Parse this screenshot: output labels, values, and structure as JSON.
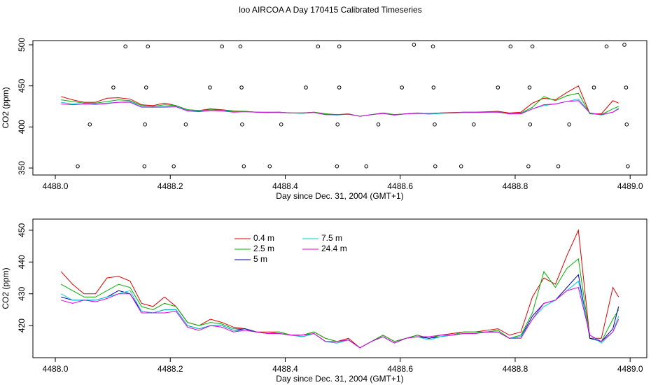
{
  "chart_data": [
    {
      "type": "line",
      "title": "loo AIRCOA A  Day 170415  Calibrated Timeseries",
      "x_label": "Day since Dec. 31, 2004 (GMT+1)",
      "y_label": "CO2 (ppm)",
      "xlim": [
        4487.961,
        4489.029
      ],
      "ylim": [
        341.5,
        505.1
      ],
      "xticks": [
        {
          "value": 4488,
          "label": "4488.0"
        },
        4488.2,
        4488.4,
        4488.6,
        4488.8,
        {
          "value": 4489,
          "label": "4489.0"
        }
      ],
      "yticks": [
        350,
        400,
        450,
        500
      ],
      "x": [
        4488.01,
        4488.03,
        4488.05,
        4488.07,
        4488.09,
        4488.11,
        4488.13,
        4488.15,
        4488.17,
        4488.19,
        4488.21,
        4488.23,
        4488.25,
        4488.27,
        4488.29,
        4488.31,
        4488.33,
        4488.35,
        4488.37,
        4488.39,
        4488.41,
        4488.43,
        4488.45,
        4488.47,
        4488.49,
        4488.51,
        4488.53,
        4488.55,
        4488.57,
        4488.59,
        4488.61,
        4488.63,
        4488.65,
        4488.67,
        4488.69,
        4488.71,
        4488.73,
        4488.75,
        4488.77,
        4488.79,
        4488.81,
        4488.83,
        4488.85,
        4488.87,
        4488.89,
        4488.91,
        4488.93,
        4488.95,
        4488.97,
        4488.98
      ],
      "series": [
        {
          "color": "#d80000",
          "values": [
            437,
            433,
            430,
            430,
            435,
            435.5,
            434,
            427,
            426,
            429,
            426,
            421,
            420,
            422,
            421,
            419.5,
            419,
            418,
            418,
            418,
            417,
            417,
            418,
            416,
            415,
            416,
            413,
            415,
            417,
            415,
            416,
            417,
            416,
            417,
            417.5,
            418,
            418,
            418.5,
            419,
            417,
            418,
            429,
            435,
            433,
            442,
            450,
            416,
            416,
            432,
            429
          ]
        },
        {
          "color": "#00b000",
          "values": [
            433,
            431,
            429,
            429,
            431,
            433,
            432,
            426,
            425,
            427,
            426,
            421,
            420,
            421,
            420.5,
            419,
            419,
            418,
            417.5,
            418,
            417,
            417,
            418,
            416,
            415,
            415.5,
            413,
            415,
            417,
            415,
            416,
            417,
            416,
            417,
            417,
            418,
            418,
            418,
            418.5,
            416,
            417,
            424,
            437,
            432,
            438,
            441,
            416,
            415,
            422,
            425
          ]
        },
        {
          "color": "#00000a0",
          "values": [
            429,
            428,
            428,
            428,
            429,
            431,
            430,
            424.5,
            424,
            425,
            425,
            420,
            419,
            420,
            420,
            418.5,
            419,
            418,
            417.5,
            417.5,
            417,
            416.5,
            417.5,
            415,
            414.5,
            415.5,
            413,
            415,
            416.5,
            414.5,
            416,
            416.5,
            416,
            416.5,
            417,
            417.5,
            417.5,
            418,
            418,
            416,
            416.5,
            423,
            427,
            428,
            432,
            436,
            416,
            415,
            419,
            426
          ]
        },
        {
          "color": "#00d0d0",
          "values": [
            430,
            428,
            428,
            428,
            429,
            430,
            431,
            424.5,
            424,
            425,
            425,
            420,
            419,
            420,
            420,
            418.5,
            418.5,
            418,
            417.5,
            417.5,
            417,
            416.5,
            417.5,
            415,
            414.5,
            415.5,
            413,
            415,
            416.5,
            414.5,
            416,
            416.5,
            415.5,
            416.5,
            417,
            417.5,
            417.5,
            418,
            418,
            416,
            416.5,
            422,
            426,
            428,
            431,
            434,
            417,
            414.5,
            418,
            423
          ]
        },
        {
          "color": "#e000e0",
          "values": [
            428,
            427,
            428,
            427.5,
            428.5,
            430,
            430,
            424,
            424,
            424,
            424.5,
            419.5,
            418.5,
            420,
            419.5,
            418,
            418.5,
            418,
            417.5,
            417.5,
            417,
            417,
            417.5,
            415,
            415,
            415.5,
            413,
            415,
            416.5,
            414.5,
            416,
            416.5,
            416.5,
            417,
            417,
            417.5,
            417.5,
            418,
            418,
            416,
            416,
            422,
            427,
            428,
            431,
            432,
            417,
            415,
            418,
            422
          ]
        }
      ],
      "points": {
        "color": "#000000",
        "x": [
          4488.122,
          4488.161,
          4488.29,
          4488.322,
          4488.457,
          4488.494,
          4488.624,
          4488.657,
          4488.792,
          4488.83,
          4488.959,
          4488.99,
          4488.101,
          4488.158,
          4488.269,
          4488.324,
          4488.436,
          4488.494,
          4488.603,
          4488.658,
          4488.77,
          4488.825,
          4488.937,
          4488.993,
          4488.06,
          4488.156,
          4488.227,
          4488.325,
          4488.393,
          4488.491,
          4488.562,
          4488.66,
          4488.728,
          4488.826,
          4488.894,
          4488.994,
          4488.039,
          4488.155,
          4488.206,
          4488.328,
          4488.373,
          4488.49,
          4488.541,
          4488.661,
          4488.706,
          4488.823,
          4488.875,
          4488.996
        ],
        "values": [
          498,
          498,
          498,
          498,
          498,
          498,
          500,
          498,
          498,
          498,
          498,
          500,
          448,
          448,
          448,
          448,
          448,
          448,
          448,
          448,
          448,
          448,
          448,
          448,
          403,
          403,
          403,
          403,
          403,
          403,
          403,
          403,
          403,
          403,
          403,
          403,
          352,
          352,
          352,
          352,
          352,
          352,
          352,
          352,
          352,
          352,
          352,
          352
        ]
      }
    },
    {
      "type": "line",
      "x_label": "Day since Dec. 31, 2004 (GMT+1)",
      "y_label": "CO2 (ppm)",
      "xlim": [
        4487.961,
        4489.029
      ],
      "ylim": [
        409.9,
        453.5
      ],
      "xticks": [
        {
          "value": 4488,
          "label": "4488.0"
        },
        4488.2,
        4488.4,
        4488.6,
        4488.8,
        {
          "value": 4489,
          "label": "4489.0"
        }
      ],
      "yticks": [
        420,
        430,
        440,
        450
      ],
      "legend": "top-left",
      "x": [
        4488.01,
        4488.03,
        4488.05,
        4488.07,
        4488.09,
        4488.11,
        4488.13,
        4488.15,
        4488.17,
        4488.19,
        4488.21,
        4488.23,
        4488.25,
        4488.27,
        4488.29,
        4488.31,
        4488.33,
        4488.35,
        4488.37,
        4488.39,
        4488.41,
        4488.43,
        4488.45,
        4488.47,
        4488.49,
        4488.51,
        4488.53,
        4488.55,
        4488.57,
        4488.59,
        4488.61,
        4488.63,
        4488.65,
        4488.67,
        4488.69,
        4488.71,
        4488.73,
        4488.75,
        4488.77,
        4488.79,
        4488.81,
        4488.83,
        4488.85,
        4488.87,
        4488.89,
        4488.91,
        4488.93,
        4488.95,
        4488.97,
        4488.98
      ],
      "series": [
        {
          "name": "0.4 m",
          "color": "#d80000",
          "values": [
            437,
            433,
            430,
            430,
            435,
            435.5,
            434,
            427,
            426,
            429,
            426,
            421,
            420,
            422,
            421,
            419.5,
            419,
            418,
            418,
            418,
            417,
            417,
            418,
            416,
            415,
            416,
            413,
            415,
            417,
            415,
            416,
            417,
            416,
            417,
            417.5,
            418,
            418,
            418.5,
            419,
            417,
            418,
            429,
            435,
            433,
            442,
            450,
            416,
            416,
            432,
            429
          ]
        },
        {
          "name": "2.5 m",
          "color": "#00b000",
          "values": [
            433,
            431,
            429,
            429,
            431,
            433,
            432,
            426,
            425,
            427,
            426,
            421,
            420,
            421,
            420.5,
            419,
            419,
            418,
            417.5,
            418,
            417,
            417,
            418,
            416,
            415,
            415.5,
            413,
            415,
            417,
            415,
            416,
            417,
            416,
            417,
            417,
            418,
            418,
            418,
            418.5,
            416,
            417,
            424,
            437,
            432,
            438,
            441,
            416,
            415,
            422,
            425
          ]
        },
        {
          "name": "5 m",
          "color": "#0000a0",
          "values": [
            429,
            428,
            428,
            428,
            429,
            431,
            430,
            424.5,
            424,
            425,
            425,
            420,
            419,
            420,
            420,
            418.5,
            419,
            418,
            417.5,
            417.5,
            417,
            416.5,
            417.5,
            415,
            414.5,
            415.5,
            413,
            415,
            416.5,
            414.5,
            416,
            416.5,
            416,
            416.5,
            417,
            417.5,
            417.5,
            418,
            418,
            416,
            416.5,
            423,
            427,
            428,
            432,
            436,
            416,
            415,
            419,
            426
          ]
        },
        {
          "name": "7.5 m",
          "color": "#00d0d0",
          "values": [
            430,
            428,
            428,
            428,
            429,
            430,
            431,
            424.5,
            424,
            425,
            425,
            420,
            419,
            420,
            420,
            418.5,
            418.5,
            418,
            417.5,
            417.5,
            417,
            416.5,
            417.5,
            415,
            414.5,
            415.5,
            413,
            415,
            416.5,
            414.5,
            416,
            416.5,
            415.5,
            416.5,
            417,
            417.5,
            417.5,
            418,
            418,
            416,
            416.5,
            422,
            426,
            428,
            431,
            434,
            417,
            414.5,
            418,
            423
          ]
        },
        {
          "name": "24.4 m",
          "color": "#e000e0",
          "values": [
            428,
            427,
            428,
            427.5,
            428.5,
            430,
            430,
            424,
            424,
            424,
            424.5,
            419.5,
            418.5,
            420,
            419.5,
            418,
            418.5,
            418,
            417.5,
            417.5,
            417,
            417,
            417.5,
            415,
            415,
            415.5,
            413,
            415,
            416.5,
            414.5,
            416,
            416.5,
            416.5,
            417,
            417,
            417.5,
            417.5,
            418,
            418,
            416,
            416,
            422,
            427,
            428,
            431,
            432,
            417,
            415,
            418,
            422
          ]
        }
      ]
    }
  ]
}
